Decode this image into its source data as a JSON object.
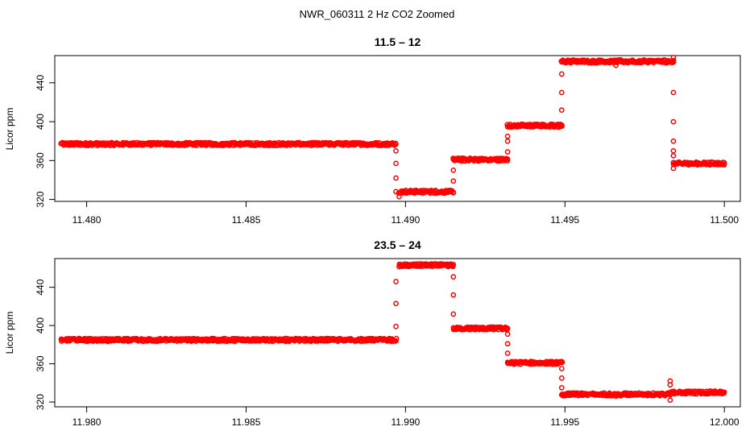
{
  "chart_data": [
    {
      "type": "scatter",
      "suptitle": "NWR_060311  2 Hz CO2 Zoomed",
      "title": "11.5 – 12",
      "xlabel": "",
      "ylabel": "Licor ppm",
      "xlim": [
        11.479,
        11.5005
      ],
      "ylim": [
        318,
        468
      ],
      "xticks": [
        11.48,
        11.485,
        11.49,
        11.495,
        11.5
      ],
      "xtick_labels": [
        "11.480",
        "11.485",
        "11.490",
        "11.495",
        "11.500"
      ],
      "yticks": [
        320,
        360,
        400,
        440
      ],
      "yticks_labels": [
        "320",
        "360",
        "400",
        "440"
      ],
      "marker_color": "#ff0000",
      "grid": false,
      "segments": [
        {
          "x0": 11.4792,
          "x1": 11.4897,
          "y": 377
        },
        {
          "x0": 11.4898,
          "x1": 11.4915,
          "y": 328
        },
        {
          "x0": 11.4915,
          "x1": 11.4932,
          "y": 361
        },
        {
          "x0": 11.4932,
          "x1": 11.4949,
          "y": 396
        },
        {
          "x0": 11.4949,
          "x1": 11.4984,
          "y": 462
        },
        {
          "x0": 11.4984,
          "x1": 11.5,
          "y": 357
        }
      ],
      "transitions": [
        {
          "x": 11.4897,
          "y": [
            370,
            357,
            342,
            328
          ]
        },
        {
          "x": 11.4915,
          "y": [
            339,
            350
          ]
        },
        {
          "x": 11.4932,
          "y": [
            369,
            380,
            385
          ]
        },
        {
          "x": 11.4949,
          "y": [
            412,
            430,
            449
          ]
        },
        {
          "x": 11.4984,
          "y": [
            430,
            400,
            380,
            370,
            365,
            352
          ]
        }
      ],
      "outliers": [
        {
          "x": 11.4966,
          "y": 458
        },
        {
          "x": 11.4984,
          "y": 466
        },
        {
          "x": 11.4898,
          "y": 323
        }
      ]
    },
    {
      "type": "scatter",
      "title": "23.5 – 24",
      "xlabel": "",
      "ylabel": "Licor ppm",
      "xlim": [
        11.979,
        12.0005
      ],
      "ylim": [
        315,
        470
      ],
      "xticks": [
        11.98,
        11.985,
        11.99,
        11.995,
        12.0
      ],
      "xtick_labels": [
        "11.980",
        "11.985",
        "11.990",
        "11.995",
        "12.000"
      ],
      "yticks": [
        320,
        360,
        400,
        440
      ],
      "yticks_labels": [
        "320",
        "360",
        "400",
        "440"
      ],
      "marker_color": "#ff0000",
      "grid": false,
      "segments": [
        {
          "x0": 11.9792,
          "x1": 11.9897,
          "y": 385
        },
        {
          "x0": 11.9898,
          "x1": 11.9915,
          "y": 463
        },
        {
          "x0": 11.9915,
          "x1": 11.9932,
          "y": 397
        },
        {
          "x0": 11.9932,
          "x1": 11.9949,
          "y": 361
        },
        {
          "x0": 11.9949,
          "x1": 11.9983,
          "y": 328
        },
        {
          "x0": 11.9983,
          "x1": 12.0,
          "y": 330
        }
      ],
      "transitions": [
        {
          "x": 11.9897,
          "y": [
            399,
            423,
            446
          ]
        },
        {
          "x": 11.9915,
          "y": [
            451,
            432,
            412
          ]
        },
        {
          "x": 11.9932,
          "y": [
            391,
            381,
            371
          ]
        },
        {
          "x": 11.9949,
          "y": [
            355,
            345,
            335
          ]
        },
        {
          "x": 11.9983,
          "y": [
            342,
            338,
            322
          ]
        }
      ],
      "outliers": [
        {
          "x": 11.9966,
          "y": 326
        }
      ]
    }
  ]
}
